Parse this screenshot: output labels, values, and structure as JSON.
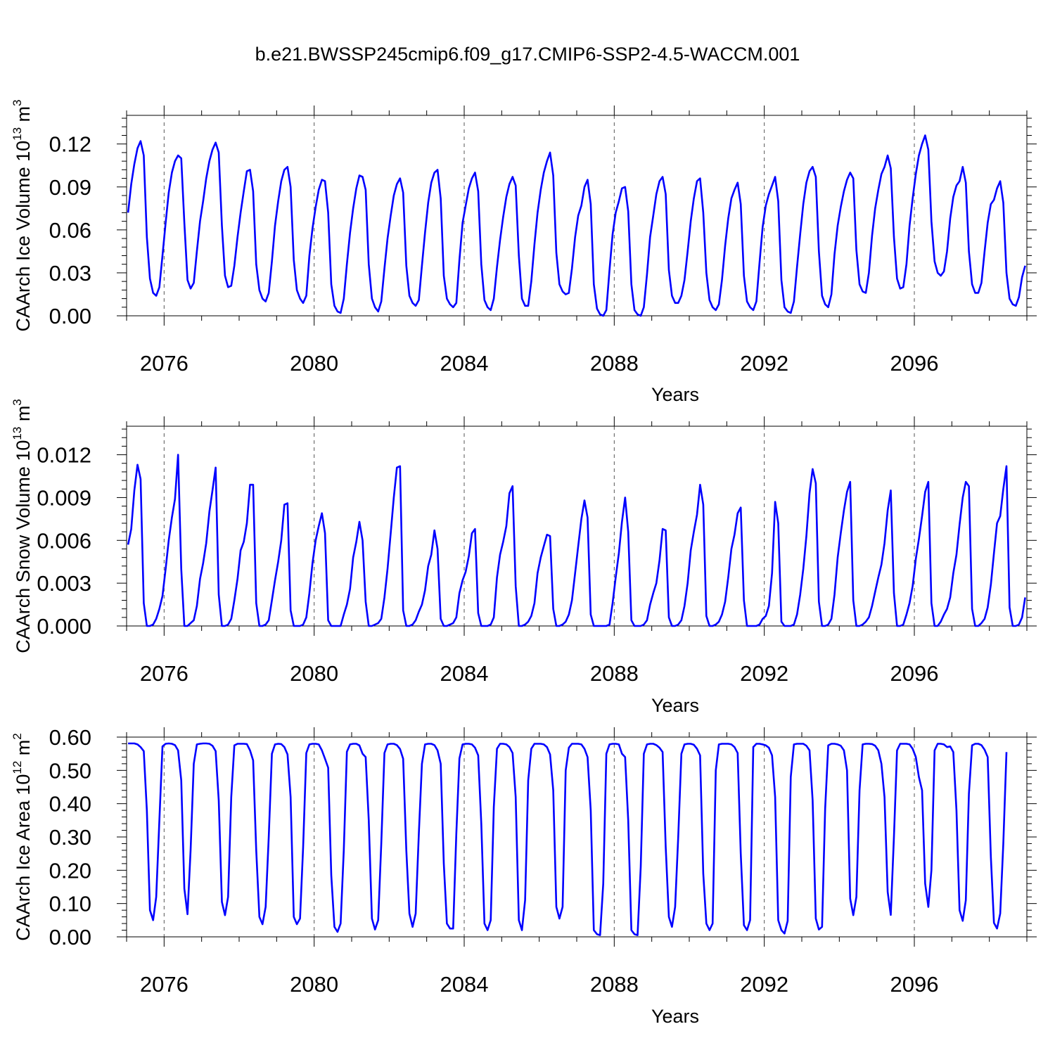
{
  "title": "b.e21.BWSSP245cmip6.f09_g17.CMIP6-SSP2-4.5-WACCM.001",
  "colors": {
    "line": "#0000ff",
    "axis": "#000000",
    "grid": "#555555"
  },
  "chart_data": [
    {
      "type": "line",
      "title": "",
      "xlabel": "Years",
      "ylabel": "CAArch Ice Volume 10",
      "ylabel_exp": "13",
      "ylabel_unit": " m",
      "ylabel_unit_exp": "3",
      "xlim": [
        2075,
        2099
      ],
      "ylim": [
        0,
        0.14
      ],
      "xticks": [
        "2076",
        "2080",
        "2084",
        "2088",
        "2092",
        "2096"
      ],
      "xtick_values": [
        2076,
        2080,
        2084,
        2088,
        2092,
        2096
      ],
      "yticks": [
        "0.00",
        "0.03",
        "0.06",
        "0.09",
        "0.12"
      ],
      "ytick_values": [
        0,
        0.03,
        0.06,
        0.09,
        0.12
      ],
      "grid": "dashed vertical at labeled years",
      "series": [
        {
          "start": 2075.04,
          "step": 0.08333,
          "values": [
            0.072,
            0.092,
            0.106,
            0.117,
            0.122,
            0.112,
            0.055,
            0.026,
            0.016,
            0.014,
            0.02,
            0.042,
            0.065,
            0.086,
            0.1,
            0.108,
            0.112,
            0.11,
            0.065,
            0.025,
            0.019,
            0.023,
            0.045,
            0.066,
            0.08,
            0.096,
            0.108,
            0.116,
            0.121,
            0.114,
            0.063,
            0.028,
            0.02,
            0.021,
            0.035,
            0.055,
            0.072,
            0.087,
            0.101,
            0.102,
            0.087,
            0.036,
            0.018,
            0.012,
            0.01,
            0.016,
            0.038,
            0.063,
            0.08,
            0.094,
            0.102,
            0.104,
            0.09,
            0.039,
            0.018,
            0.012,
            0.009,
            0.014,
            0.042,
            0.061,
            0.076,
            0.088,
            0.095,
            0.094,
            0.072,
            0.022,
            0.007,
            0.003,
            0.002,
            0.012,
            0.036,
            0.058,
            0.075,
            0.089,
            0.098,
            0.097,
            0.088,
            0.036,
            0.012,
            0.006,
            0.003,
            0.01,
            0.033,
            0.054,
            0.07,
            0.084,
            0.092,
            0.096,
            0.086,
            0.035,
            0.014,
            0.009,
            0.007,
            0.011,
            0.035,
            0.058,
            0.079,
            0.093,
            0.1,
            0.102,
            0.082,
            0.028,
            0.012,
            0.008,
            0.006,
            0.009,
            0.039,
            0.065,
            0.077,
            0.089,
            0.096,
            0.1,
            0.087,
            0.036,
            0.011,
            0.006,
            0.004,
            0.012,
            0.034,
            0.053,
            0.069,
            0.083,
            0.092,
            0.097,
            0.091,
            0.042,
            0.012,
            0.007,
            0.007,
            0.024,
            0.05,
            0.072,
            0.088,
            0.1,
            0.108,
            0.114,
            0.098,
            0.044,
            0.022,
            0.017,
            0.015,
            0.016,
            0.033,
            0.055,
            0.07,
            0.077,
            0.09,
            0.095,
            0.078,
            0.022,
            0.005,
            0.001,
            0.0,
            0.004,
            0.032,
            0.057,
            0.072,
            0.08,
            0.089,
            0.09,
            0.073,
            0.022,
            0.004,
            0.001,
            0.0,
            0.006,
            0.029,
            0.055,
            0.07,
            0.085,
            0.094,
            0.097,
            0.085,
            0.032,
            0.014,
            0.009,
            0.009,
            0.014,
            0.025,
            0.045,
            0.066,
            0.082,
            0.094,
            0.096,
            0.072,
            0.03,
            0.011,
            0.006,
            0.004,
            0.008,
            0.025,
            0.049,
            0.068,
            0.082,
            0.088,
            0.093,
            0.078,
            0.028,
            0.01,
            0.006,
            0.004,
            0.01,
            0.037,
            0.062,
            0.077,
            0.085,
            0.091,
            0.097,
            0.08,
            0.025,
            0.006,
            0.003,
            0.002,
            0.01,
            0.034,
            0.057,
            0.078,
            0.093,
            0.101,
            0.104,
            0.097,
            0.045,
            0.014,
            0.008,
            0.006,
            0.015,
            0.043,
            0.063,
            0.076,
            0.087,
            0.095,
            0.1,
            0.096,
            0.046,
            0.022,
            0.017,
            0.016,
            0.03,
            0.056,
            0.075,
            0.088,
            0.099,
            0.104,
            0.112,
            0.103,
            0.055,
            0.026,
            0.019,
            0.02,
            0.036,
            0.063,
            0.082,
            0.099,
            0.112,
            0.12,
            0.126,
            0.116,
            0.066,
            0.038,
            0.03,
            0.028,
            0.031,
            0.045,
            0.068,
            0.083,
            0.091,
            0.094,
            0.104,
            0.093,
            0.045,
            0.022,
            0.016,
            0.016,
            0.023,
            0.045,
            0.065,
            0.078,
            0.081,
            0.089,
            0.094,
            0.079,
            0.03,
            0.012,
            0.008,
            0.007,
            0.013,
            0.027,
            0.035
          ]
        }
      ]
    },
    {
      "type": "line",
      "title": "",
      "xlabel": "Years",
      "ylabel": "CAArch Snow Volume 10",
      "ylabel_exp": "13",
      "ylabel_unit": " m",
      "ylabel_unit_exp": "3",
      "xlim": [
        2075,
        2099
      ],
      "ylim": [
        0,
        0.014
      ],
      "xticks": [
        "2076",
        "2080",
        "2084",
        "2088",
        "2092",
        "2096"
      ],
      "xtick_values": [
        2076,
        2080,
        2084,
        2088,
        2092,
        2096
      ],
      "yticks": [
        "0.000",
        "0.003",
        "0.006",
        "0.009",
        "0.012"
      ],
      "ytick_values": [
        0,
        0.003,
        0.006,
        0.009,
        0.012
      ],
      "grid": "dashed vertical at labeled years",
      "series": [
        {
          "start": 2075.04,
          "step": 0.08333,
          "values": [
            0.0057,
            0.0068,
            0.0095,
            0.0113,
            0.0103,
            0.0016,
            0.0,
            0.0,
            0.0001,
            0.0005,
            0.0012,
            0.0021,
            0.004,
            0.006,
            0.0076,
            0.0089,
            0.012,
            0.004,
            0.0,
            0.0,
            0.0002,
            0.0004,
            0.0014,
            0.0033,
            0.0044,
            0.0058,
            0.008,
            0.0095,
            0.0111,
            0.0022,
            0.0,
            0.0,
            0.0001,
            0.0005,
            0.0018,
            0.0033,
            0.0053,
            0.0059,
            0.0072,
            0.0099,
            0.0099,
            0.0016,
            0.0,
            0.0,
            0.0001,
            0.0004,
            0.0018,
            0.0032,
            0.0045,
            0.006,
            0.0085,
            0.0086,
            0.0011,
            0.0,
            0.0,
            0.0,
            0.0001,
            0.0006,
            0.0023,
            0.0044,
            0.006,
            0.007,
            0.0079,
            0.0065,
            0.0004,
            0.0,
            0.0,
            0.0,
            0.0,
            0.0008,
            0.0015,
            0.0026,
            0.0048,
            0.0059,
            0.0073,
            0.006,
            0.0017,
            0.0,
            0.0,
            0.0001,
            0.0002,
            0.0005,
            0.002,
            0.004,
            0.0065,
            0.009,
            0.0111,
            0.0112,
            0.0011,
            0.0,
            0.0,
            0.0001,
            0.0004,
            0.001,
            0.0015,
            0.0025,
            0.0042,
            0.005,
            0.0067,
            0.0054,
            0.0005,
            0.0,
            0.0,
            0.0001,
            0.0002,
            0.0006,
            0.0023,
            0.0032,
            0.0038,
            0.0049,
            0.0065,
            0.0068,
            0.0009,
            0.0,
            0.0,
            0.0,
            0.0001,
            0.0006,
            0.0034,
            0.005,
            0.0059,
            0.007,
            0.0093,
            0.0098,
            0.0028,
            0.0,
            0.0,
            0.0001,
            0.0003,
            0.0007,
            0.0016,
            0.0037,
            0.0048,
            0.0056,
            0.0064,
            0.0063,
            0.0012,
            0.0,
            0.0,
            0.0001,
            0.0003,
            0.0008,
            0.0018,
            0.0037,
            0.0056,
            0.0075,
            0.0088,
            0.0076,
            0.0008,
            0.0,
            0.0,
            0.0,
            0.0,
            0.0,
            0.0001,
            0.0016,
            0.0034,
            0.0051,
            0.0073,
            0.009,
            0.0066,
            0.0004,
            0.0,
            0.0,
            0.0,
            0.0001,
            0.0004,
            0.0015,
            0.0023,
            0.003,
            0.0046,
            0.0068,
            0.0067,
            0.0006,
            0.0,
            0.0,
            0.0001,
            0.0004,
            0.0014,
            0.003,
            0.0053,
            0.0066,
            0.0078,
            0.0099,
            0.0085,
            0.0007,
            0.0,
            0.0,
            0.0001,
            0.0003,
            0.0008,
            0.0017,
            0.0034,
            0.0054,
            0.0064,
            0.0079,
            0.0083,
            0.0018,
            0.0,
            0.0,
            0.0,
            0.0,
            0.0001,
            0.0005,
            0.0007,
            0.0014,
            0.0037,
            0.0087,
            0.0072,
            0.0003,
            0.0,
            0.0,
            0.0,
            0.0001,
            0.0008,
            0.0022,
            0.004,
            0.0063,
            0.0093,
            0.011,
            0.01,
            0.0017,
            0.0,
            0.0,
            0.0001,
            0.0005,
            0.0022,
            0.0048,
            0.0065,
            0.0081,
            0.0094,
            0.0101,
            0.0018,
            0.0,
            0.0,
            0.0001,
            0.0003,
            0.0006,
            0.0014,
            0.0024,
            0.0034,
            0.0043,
            0.0058,
            0.0081,
            0.0095,
            0.0023,
            0.0,
            0.0,
            0.0001,
            0.0008,
            0.0016,
            0.0028,
            0.0047,
            0.0061,
            0.0077,
            0.0094,
            0.0101,
            0.0016,
            0.0,
            0.0,
            0.0003,
            0.0008,
            0.0012,
            0.002,
            0.0037,
            0.005,
            0.0071,
            0.009,
            0.0101,
            0.0098,
            0.0012,
            0.0,
            0.0,
            0.0002,
            0.0005,
            0.0013,
            0.0029,
            0.0051,
            0.0072,
            0.0077,
            0.0096,
            0.0112,
            0.0013,
            0.0,
            0.0,
            0.0001,
            0.0006,
            0.002
          ]
        }
      ]
    },
    {
      "type": "line",
      "title": "",
      "xlabel": "Years",
      "ylabel": "CAArch Ice Area 10",
      "ylabel_exp": "12",
      "ylabel_unit": " m",
      "ylabel_unit_exp": "2",
      "xlim": [
        2075,
        2099
      ],
      "ylim": [
        0,
        0.6
      ],
      "xticks": [
        "2076",
        "2080",
        "2084",
        "2088",
        "2092",
        "2096"
      ],
      "xtick_values": [
        2076,
        2080,
        2084,
        2088,
        2092,
        2096
      ],
      "yticks": [
        "0.00",
        "0.10",
        "0.20",
        "0.30",
        "0.40",
        "0.50",
        "0.60"
      ],
      "ytick_values": [
        0,
        0.1,
        0.2,
        0.3,
        0.4,
        0.5,
        0.6
      ],
      "grid": "dashed vertical at labeled years",
      "series": [
        {
          "start": 2075.04,
          "step": 0.08333,
          "values": [
            0.581,
            0.581,
            0.581,
            0.578,
            0.57,
            0.558,
            0.38,
            0.08,
            0.05,
            0.12,
            0.35,
            0.572,
            0.58,
            0.581,
            0.58,
            0.576,
            0.56,
            0.47,
            0.145,
            0.068,
            0.26,
            0.52,
            0.578,
            0.58,
            0.581,
            0.581,
            0.58,
            0.574,
            0.558,
            0.41,
            0.105,
            0.065,
            0.12,
            0.42,
            0.575,
            0.58,
            0.58,
            0.58,
            0.579,
            0.56,
            0.53,
            0.26,
            0.06,
            0.038,
            0.09,
            0.3,
            0.55,
            0.578,
            0.58,
            0.579,
            0.57,
            0.548,
            0.42,
            0.06,
            0.038,
            0.055,
            0.27,
            0.552,
            0.578,
            0.58,
            0.58,
            0.578,
            0.56,
            0.535,
            0.508,
            0.185,
            0.03,
            0.015,
            0.04,
            0.26,
            0.556,
            0.578,
            0.58,
            0.58,
            0.575,
            0.55,
            0.54,
            0.35,
            0.055,
            0.022,
            0.05,
            0.28,
            0.552,
            0.578,
            0.58,
            0.58,
            0.576,
            0.564,
            0.535,
            0.26,
            0.07,
            0.03,
            0.07,
            0.31,
            0.52,
            0.578,
            0.58,
            0.58,
            0.576,
            0.56,
            0.52,
            0.22,
            0.04,
            0.025,
            0.025,
            0.31,
            0.536,
            0.578,
            0.58,
            0.58,
            0.578,
            0.568,
            0.545,
            0.34,
            0.04,
            0.02,
            0.05,
            0.39,
            0.565,
            0.58,
            0.58,
            0.578,
            0.57,
            0.552,
            0.42,
            0.05,
            0.02,
            0.11,
            0.47,
            0.565,
            0.58,
            0.58,
            0.58,
            0.578,
            0.57,
            0.548,
            0.44,
            0.09,
            0.055,
            0.09,
            0.5,
            0.568,
            0.58,
            0.58,
            0.58,
            0.578,
            0.565,
            0.54,
            0.38,
            0.02,
            0.008,
            0.005,
            0.16,
            0.55,
            0.578,
            0.58,
            0.58,
            0.578,
            0.55,
            0.54,
            0.35,
            0.02,
            0.008,
            0.005,
            0.21,
            0.55,
            0.578,
            0.58,
            0.58,
            0.576,
            0.568,
            0.555,
            0.27,
            0.06,
            0.03,
            0.09,
            0.3,
            0.55,
            0.578,
            0.58,
            0.58,
            0.577,
            0.565,
            0.545,
            0.19,
            0.04,
            0.02,
            0.04,
            0.5,
            0.578,
            0.58,
            0.58,
            0.58,
            0.578,
            0.57,
            0.552,
            0.25,
            0.035,
            0.02,
            0.05,
            0.57,
            0.58,
            0.58,
            0.578,
            0.575,
            0.568,
            0.545,
            0.42,
            0.05,
            0.02,
            0.01,
            0.048,
            0.48,
            0.578,
            0.58,
            0.58,
            0.58,
            0.574,
            0.56,
            0.41,
            0.055,
            0.022,
            0.03,
            0.385,
            0.575,
            0.58,
            0.58,
            0.578,
            0.574,
            0.56,
            0.5,
            0.115,
            0.065,
            0.12,
            0.44,
            0.578,
            0.58,
            0.58,
            0.579,
            0.574,
            0.56,
            0.52,
            0.42,
            0.135,
            0.066,
            0.3,
            0.56,
            0.58,
            0.58,
            0.58,
            0.578,
            0.565,
            0.54,
            0.48,
            0.44,
            0.16,
            0.09,
            0.2,
            0.56,
            0.58,
            0.58,
            0.578,
            0.57,
            0.572,
            0.555,
            0.38,
            0.08,
            0.048,
            0.11,
            0.43,
            0.575,
            0.58,
            0.58,
            0.576,
            0.562,
            0.54,
            0.24,
            0.042,
            0.025,
            0.07,
            0.28,
            0.555
          ]
        }
      ]
    }
  ]
}
